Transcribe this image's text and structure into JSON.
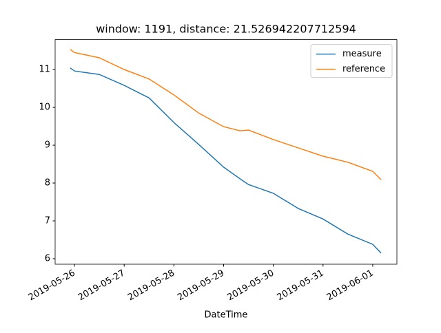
{
  "chart_data": {
    "type": "line",
    "title": "window: 1191, distance: 21.526942207712594",
    "x_label": "DateTime",
    "x": [
      "2019-05-25T22:00",
      "2019-05-26T00:00",
      "2019-05-26T12:00",
      "2019-05-27T00:00",
      "2019-05-27T12:00",
      "2019-05-28T00:00",
      "2019-05-28T12:00",
      "2019-05-29T00:00",
      "2019-05-29T08:00",
      "2019-05-29T12:00",
      "2019-05-30T00:00",
      "2019-05-30T12:00",
      "2019-05-31T00:00",
      "2019-05-31T12:00",
      "2019-06-01T00:00",
      "2019-06-01T04:00"
    ],
    "series": [
      {
        "name": "measure",
        "color": "#1f77b4",
        "values": [
          11.04,
          10.96,
          10.87,
          10.58,
          10.25,
          9.6,
          9.02,
          8.42,
          8.11,
          7.96,
          7.73,
          7.33,
          7.05,
          6.65,
          6.38,
          6.15
        ]
      },
      {
        "name": "reference",
        "color": "#ff7f0e",
        "values": [
          11.53,
          11.45,
          11.31,
          11.0,
          10.75,
          10.33,
          9.85,
          9.49,
          9.38,
          9.4,
          9.15,
          8.93,
          8.71,
          8.55,
          8.31,
          8.09
        ]
      }
    ],
    "xlim": [
      "2019-05-25T14:40",
      "2019-06-01T11:40"
    ],
    "xticks": [
      "2019-05-26",
      "2019-05-27",
      "2019-05-28",
      "2019-05-29",
      "2019-05-30",
      "2019-05-31",
      "2019-06-01"
    ],
    "ylim": [
      5.855,
      11.79
    ],
    "yticks": [
      6,
      7,
      8,
      9,
      10,
      11
    ],
    "legend": "upper right"
  }
}
